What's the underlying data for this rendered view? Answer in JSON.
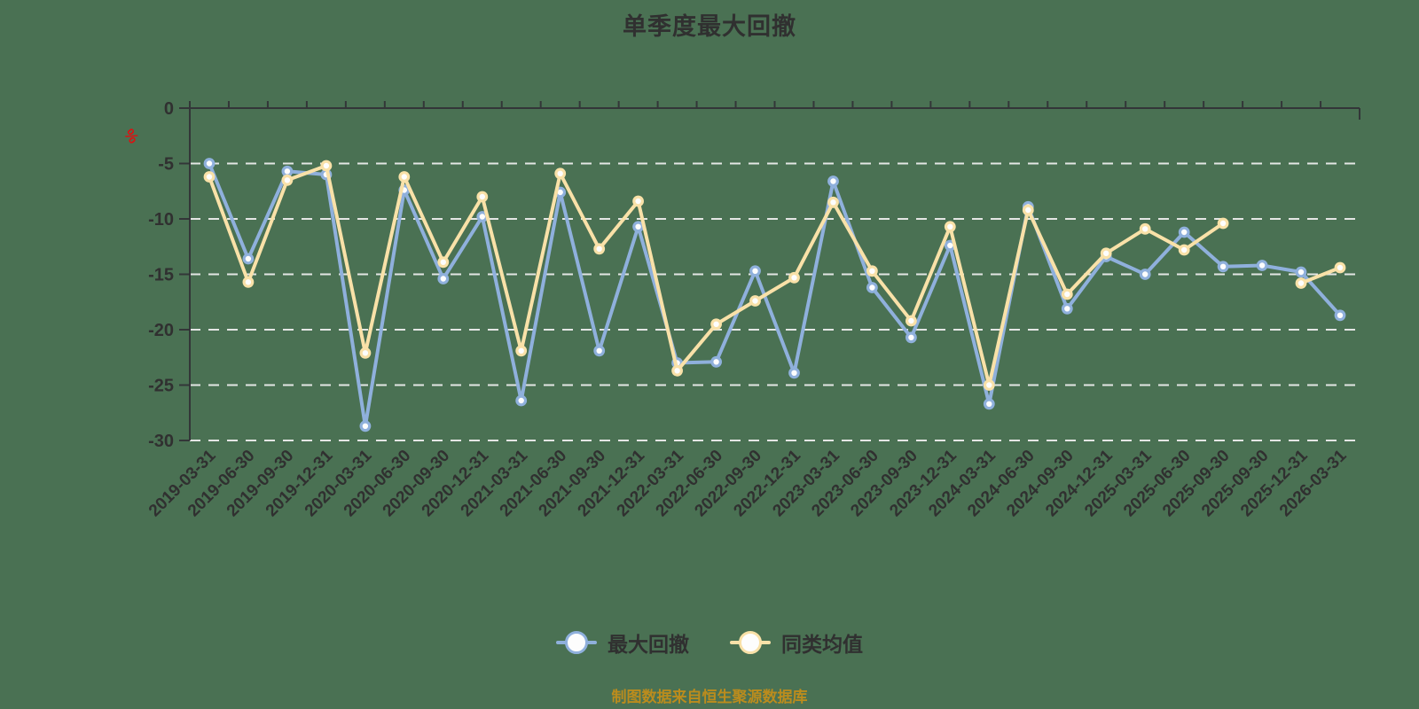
{
  "title": "单季度最大回撤",
  "footer": "制图数据来自恒生聚源数据库",
  "y_axis": {
    "unit": "%",
    "tick_labels": [
      "0",
      "-5",
      "-10",
      "-15",
      "-20",
      "-25",
      "-30"
    ]
  },
  "colors": {
    "background": "#4a7153",
    "axis": "#333638",
    "grid": "#e4e6e4",
    "label": "#303030",
    "marker_fill": "#fdfdfd",
    "percent_mark": "#dd1111",
    "footer_text": "#bb8c1d",
    "series_max_drawdown": "#8fb0dc",
    "series_category_average": "#f9e1a8"
  },
  "chart_data": {
    "type": "line",
    "title": "单季度最大回撤",
    "xlabel": "",
    "ylabel": "%",
    "ylim": [
      -30,
      0
    ],
    "y_ticks": [
      0,
      -5,
      -10,
      -15,
      -20,
      -25,
      -30
    ],
    "grid": "dashed-horizontal",
    "legend_position": "bottom",
    "categories": [
      "2019-03-31",
      "2019-06-30",
      "2019-09-30",
      "2019-12-31",
      "2020-03-31",
      "2020-06-30",
      "2020-09-30",
      "2020-12-31",
      "2021-03-31",
      "2021-06-30",
      "2021-09-30",
      "2021-12-31",
      "2022-03-31",
      "2022-06-30",
      "2022-09-30",
      "2022-12-31",
      "2023-03-31",
      "2023-06-30",
      "2023-09-30",
      "2023-12-31",
      "2024-03-31",
      "2024-06-30",
      "2024-09-30",
      "2024-12-31",
      "2025-03-31",
      "2025-06-30",
      "2025-09-30",
      "2025-09-30",
      "2025-12-31",
      "2026-03-31"
    ],
    "series": [
      {
        "name": "最大回撤",
        "color": "#8fb0dc",
        "values": [
          -5.0,
          -13.6,
          -5.7,
          -6.0,
          -28.7,
          -7.4,
          -15.4,
          -9.8,
          -26.4,
          -7.6,
          -21.9,
          -10.7,
          -23.0,
          -22.9,
          -14.7,
          -23.9,
          -6.6,
          -16.2,
          -20.7,
          -12.4,
          -26.7,
          -8.9,
          -18.1,
          -13.4,
          -15.0,
          -11.2,
          -14.3,
          -14.2,
          -14.8,
          -18.7
        ]
      },
      {
        "name": "同类均值",
        "color": "#f9e1a8",
        "values": [
          -6.2,
          -15.7,
          -6.5,
          -5.2,
          -22.1,
          -6.2,
          -13.9,
          -8.0,
          -21.9,
          -5.9,
          -12.7,
          -8.4,
          -23.7,
          -19.5,
          -17.4,
          -15.3,
          -8.5,
          -14.7,
          -19.2,
          -10.7,
          -25.0,
          -9.2,
          -16.8,
          -13.1,
          -10.9,
          -12.8,
          -10.4,
          null,
          -15.8,
          -14.4
        ]
      }
    ]
  }
}
